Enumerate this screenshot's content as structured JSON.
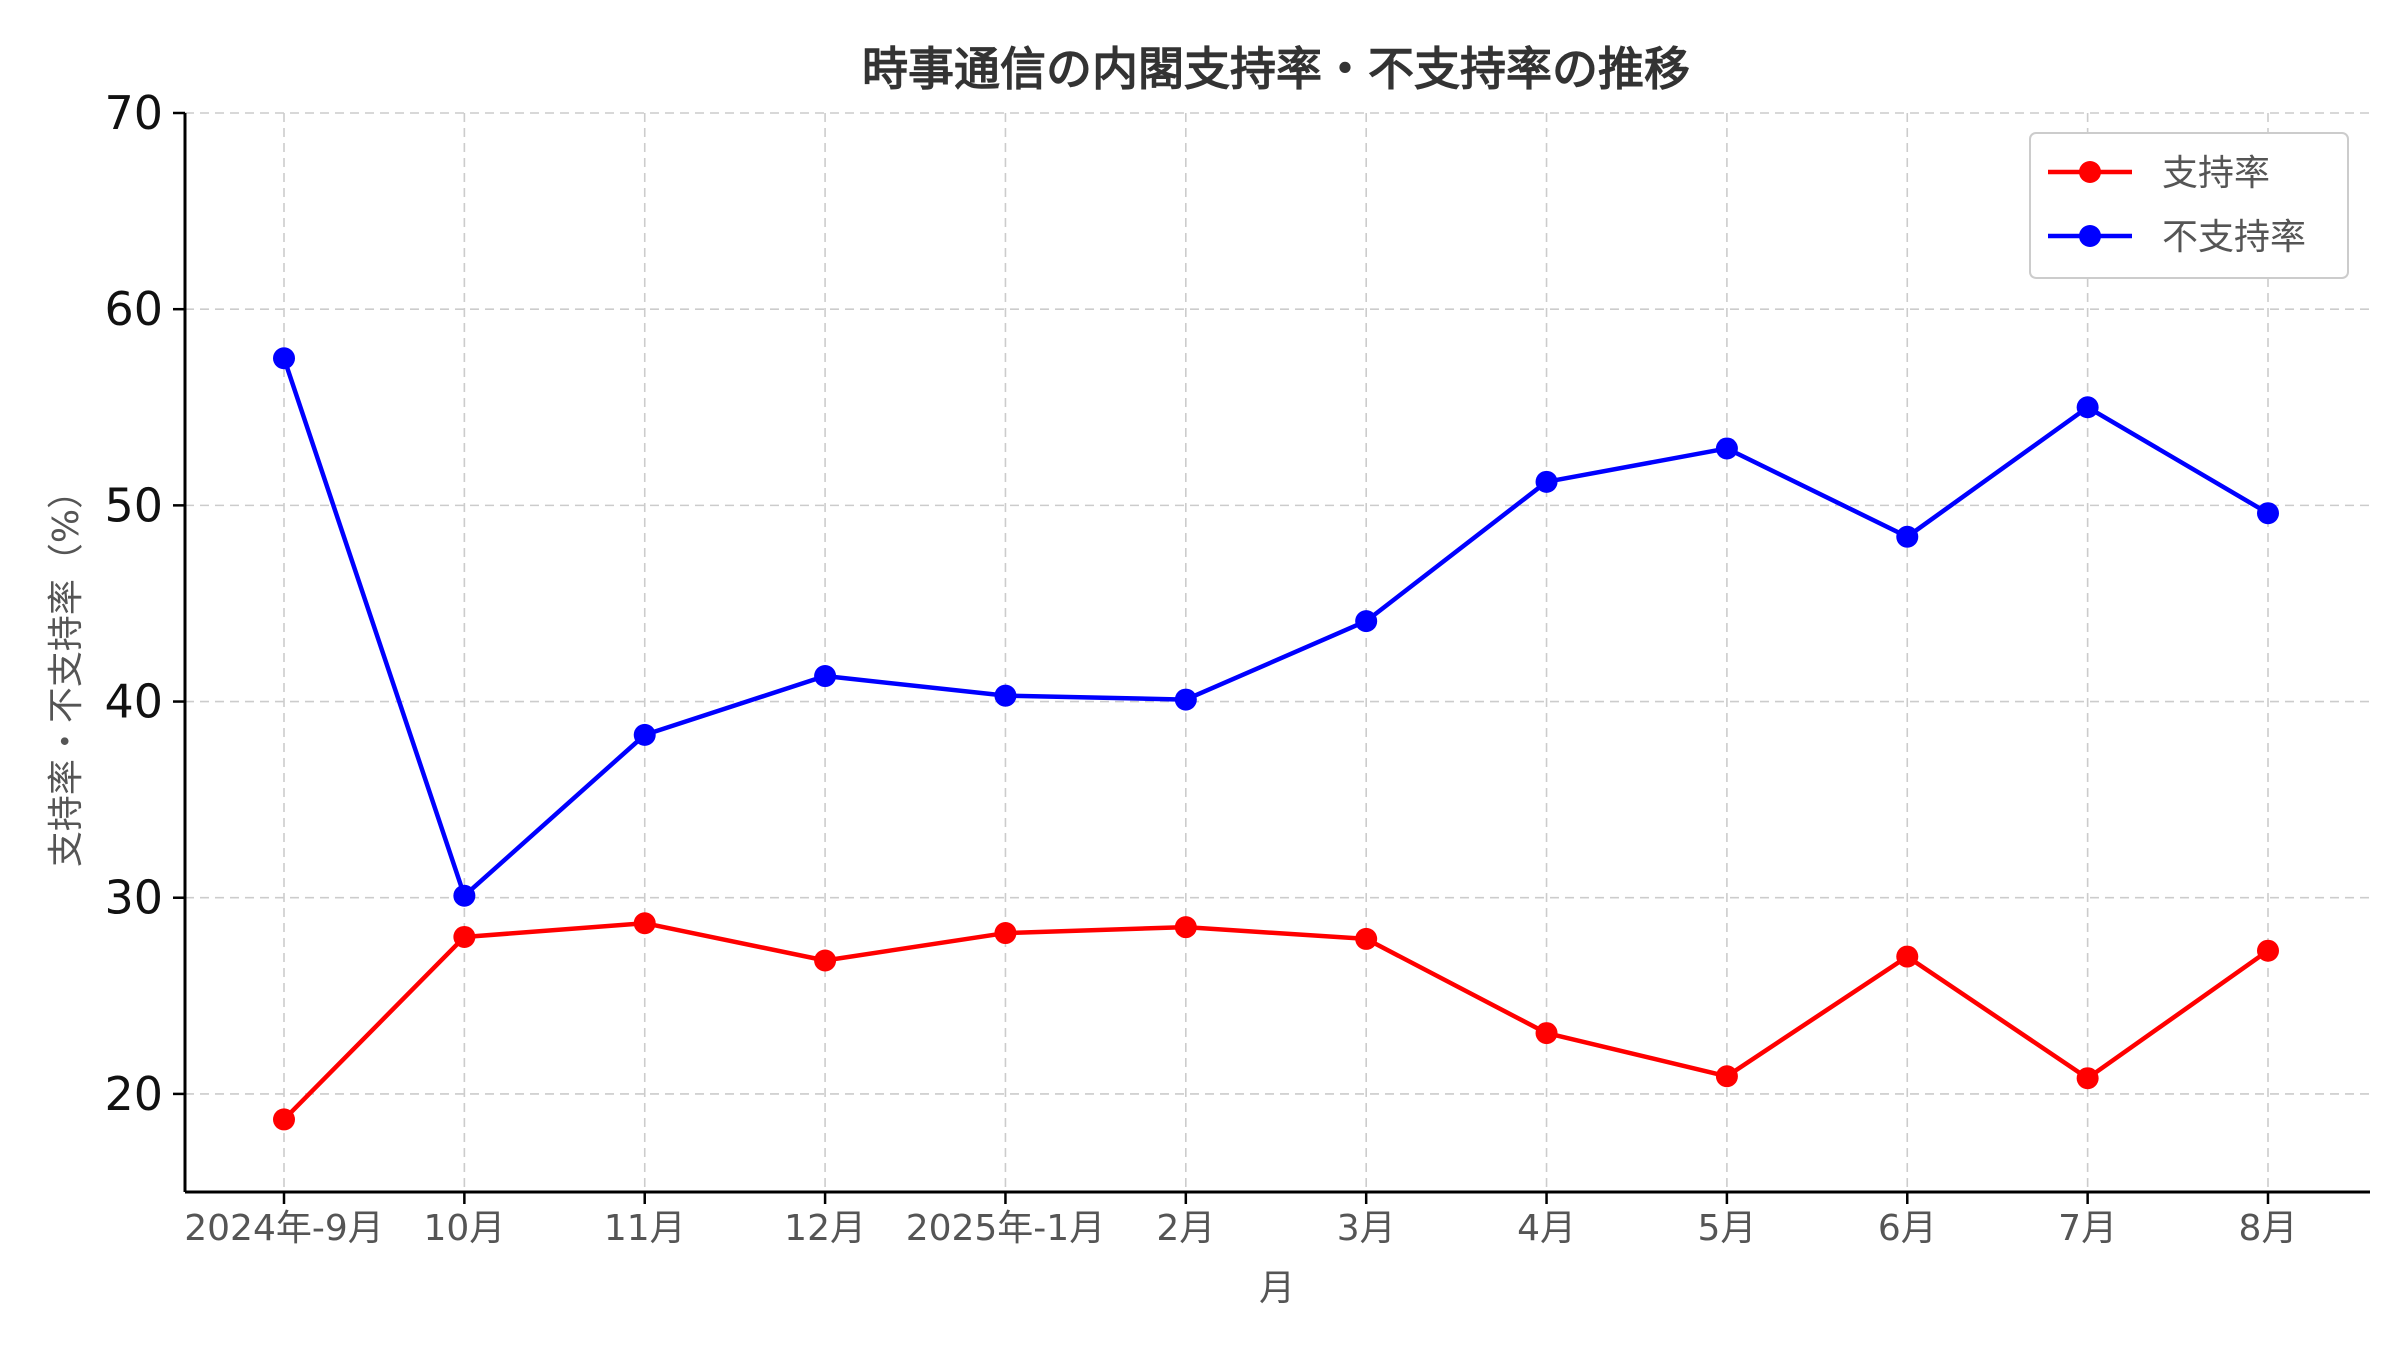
{
  "chart_data": {
    "type": "line",
    "title": "時事通信の内閣支持率・不支持率の推移",
    "xlabel": "月",
    "ylabel": "支持率・不支持率（%）",
    "categories": [
      "2024年-9月",
      "10月",
      "11月",
      "12月",
      "2025年-1月",
      "2月",
      "3月",
      "4月",
      "5月",
      "6月",
      "7月",
      "8月"
    ],
    "ylim": [
      15,
      70
    ],
    "yticks": [
      20,
      30,
      40,
      50,
      60,
      70
    ],
    "grid": true,
    "legend_position": "top-right",
    "series": [
      {
        "name": "支持率",
        "color": "#ff0000",
        "values": [
          18.7,
          28.0,
          28.7,
          26.8,
          28.2,
          28.5,
          27.9,
          23.1,
          20.9,
          27.0,
          20.8,
          27.3
        ]
      },
      {
        "name": "不支持率",
        "color": "#0000ff",
        "values": [
          57.5,
          30.1,
          38.3,
          41.3,
          40.3,
          40.1,
          44.1,
          51.2,
          52.9,
          48.4,
          55.0,
          49.6
        ]
      }
    ]
  }
}
